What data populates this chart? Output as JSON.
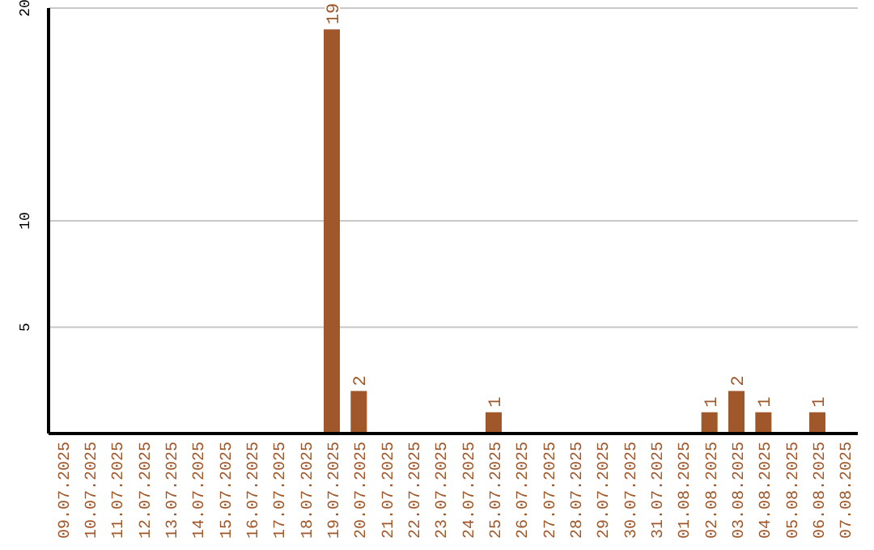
{
  "chart_data": {
    "type": "bar",
    "categories": [
      "09.07.2025",
      "10.07.2025",
      "11.07.2025",
      "12.07.2025",
      "13.07.2025",
      "14.07.2025",
      "15.07.2025",
      "16.07.2025",
      "17.07.2025",
      "18.07.2025",
      "19.07.2025",
      "20.07.2025",
      "21.07.2025",
      "22.07.2025",
      "23.07.2025",
      "24.07.2025",
      "25.07.2025",
      "26.07.2025",
      "27.07.2025",
      "28.07.2025",
      "29.07.2025",
      "30.07.2025",
      "31.07.2025",
      "01.08.2025",
      "02.08.2025",
      "03.08.2025",
      "04.08.2025",
      "05.08.2025",
      "06.08.2025",
      "07.08.2025"
    ],
    "values": [
      0,
      0,
      0,
      0,
      0,
      0,
      0,
      0,
      0,
      0,
      19,
      2,
      0,
      0,
      0,
      0,
      1,
      0,
      0,
      0,
      0,
      0,
      0,
      0,
      1,
      2,
      1,
      0,
      1,
      0
    ],
    "value_labels": [
      null,
      null,
      null,
      null,
      null,
      null,
      null,
      null,
      null,
      null,
      "19",
      "2",
      null,
      null,
      null,
      null,
      "1",
      null,
      null,
      null,
      null,
      null,
      null,
      null,
      "1",
      "2",
      "1",
      null,
      "1",
      null
    ],
    "color": "#a0572a",
    "ylim": [
      0,
      20
    ],
    "yticks": [
      5,
      10,
      20
    ],
    "grid": "y"
  }
}
